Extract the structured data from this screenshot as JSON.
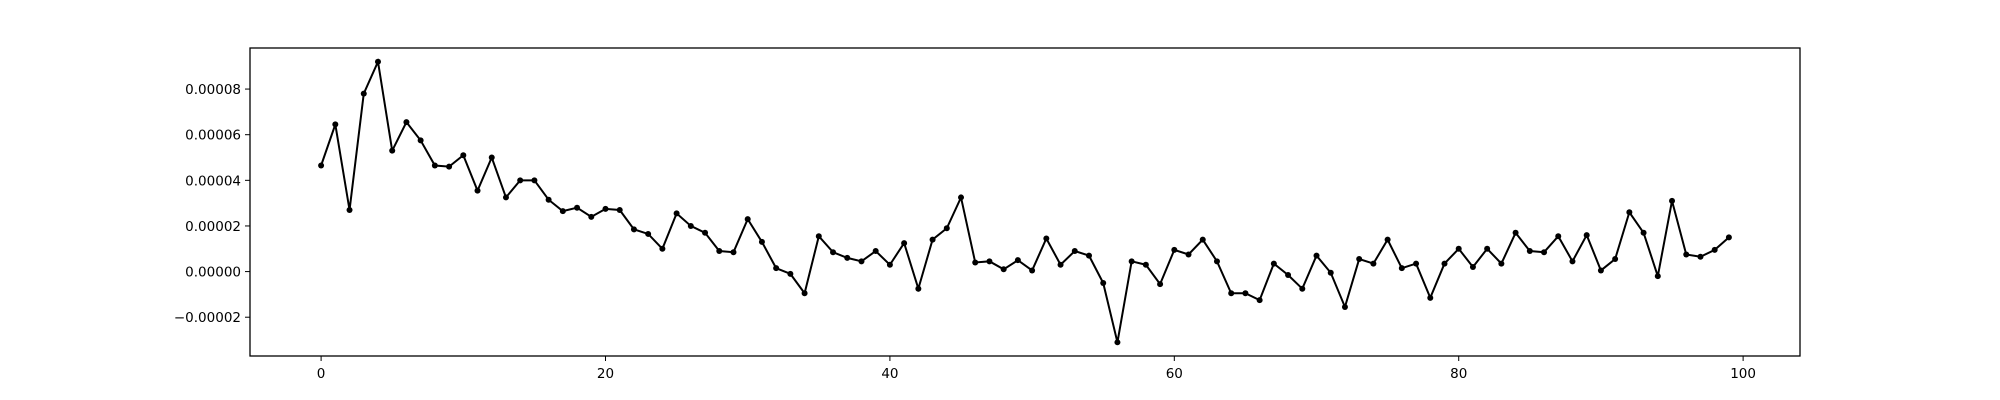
{
  "chart_data": {
    "type": "line",
    "title": "",
    "xlabel": "",
    "ylabel": "",
    "xlim": [
      -5,
      104
    ],
    "ylim": [
      -3.7e-05,
      9.8e-05
    ],
    "x_ticks": [
      0,
      20,
      40,
      60,
      80,
      100
    ],
    "x_tick_labels": [
      "0",
      "20",
      "40",
      "60",
      "80",
      "100"
    ],
    "y_ticks": [
      -2e-05,
      0.0,
      2e-05,
      4e-05,
      6e-05,
      8e-05
    ],
    "y_tick_labels": [
      "−0.00002",
      "0.00000",
      "0.00002",
      "0.00004",
      "0.00006",
      "0.00008"
    ],
    "grid": false,
    "legend": "none",
    "line_color": "#000000",
    "marker": "circle",
    "series": [
      {
        "x": [
          0,
          1,
          2,
          3,
          4,
          5,
          6,
          7,
          8,
          9,
          10,
          11,
          12,
          13,
          14,
          15,
          16,
          17,
          18,
          19,
          20,
          21,
          22,
          23,
          24,
          25,
          26,
          27,
          28,
          29,
          30,
          31,
          32,
          33,
          34,
          35,
          36,
          37,
          38,
          39,
          40,
          41,
          42,
          43,
          44,
          45,
          46,
          47,
          48,
          49,
          50,
          51,
          52,
          53,
          54,
          55,
          56,
          57,
          58,
          59,
          60,
          61,
          62,
          63,
          64,
          65,
          66,
          67,
          68,
          69,
          70,
          71,
          72,
          73,
          74,
          75,
          76,
          77,
          78,
          79,
          80,
          81,
          82,
          83,
          84,
          85,
          86,
          87,
          88,
          89,
          90,
          91,
          92,
          93,
          94,
          95,
          96,
          97,
          98,
          99
        ],
        "values": [
          4.65e-05,
          6.45e-05,
          2.7e-05,
          7.8e-05,
          9.2e-05,
          5.3e-05,
          6.55e-05,
          5.75e-05,
          4.65e-05,
          4.6e-05,
          5.1e-05,
          3.55e-05,
          5e-05,
          3.25e-05,
          4e-05,
          4e-05,
          3.15e-05,
          2.65e-05,
          2.8e-05,
          2.4e-05,
          2.75e-05,
          2.7e-05,
          1.85e-05,
          1.65e-05,
          1e-05,
          2.55e-05,
          2e-05,
          1.7e-05,
          9e-06,
          8.5e-06,
          2.3e-05,
          1.3e-05,
          1.5e-06,
          -1e-06,
          -9.5e-06,
          1.55e-05,
          8.5e-06,
          6e-06,
          4.5e-06,
          9e-06,
          3e-06,
          1.25e-05,
          -7.5e-06,
          1.4e-05,
          1.9e-05,
          3.25e-05,
          4e-06,
          4.5e-06,
          1e-06,
          5e-06,
          5e-07,
          1.45e-05,
          3e-06,
          9e-06,
          7e-06,
          -5e-06,
          -3.1e-05,
          4.5e-06,
          3e-06,
          -5.5e-06,
          9.5e-06,
          7.5e-06,
          1.4e-05,
          4.5e-06,
          -9.5e-06,
          -9.5e-06,
          -1.25e-05,
          3.5e-06,
          -1.5e-06,
          -7.5e-06,
          7e-06,
          -5e-07,
          -1.55e-05,
          5.5e-06,
          3.5e-06,
          1.4e-05,
          1.5e-06,
          3.5e-06,
          -1.15e-05,
          3.5e-06,
          1e-05,
          2e-06,
          1e-05,
          3.5e-06,
          1.7e-05,
          9e-06,
          8.5e-06,
          1.55e-05,
          4.5e-06,
          1.6e-05,
          5e-07,
          5.5e-06,
          2.6e-05,
          1.7e-05,
          -2e-06,
          3.1e-05,
          7.5e-06,
          6.5e-06,
          9.5e-06,
          1.5e-05
        ]
      }
    ]
  }
}
